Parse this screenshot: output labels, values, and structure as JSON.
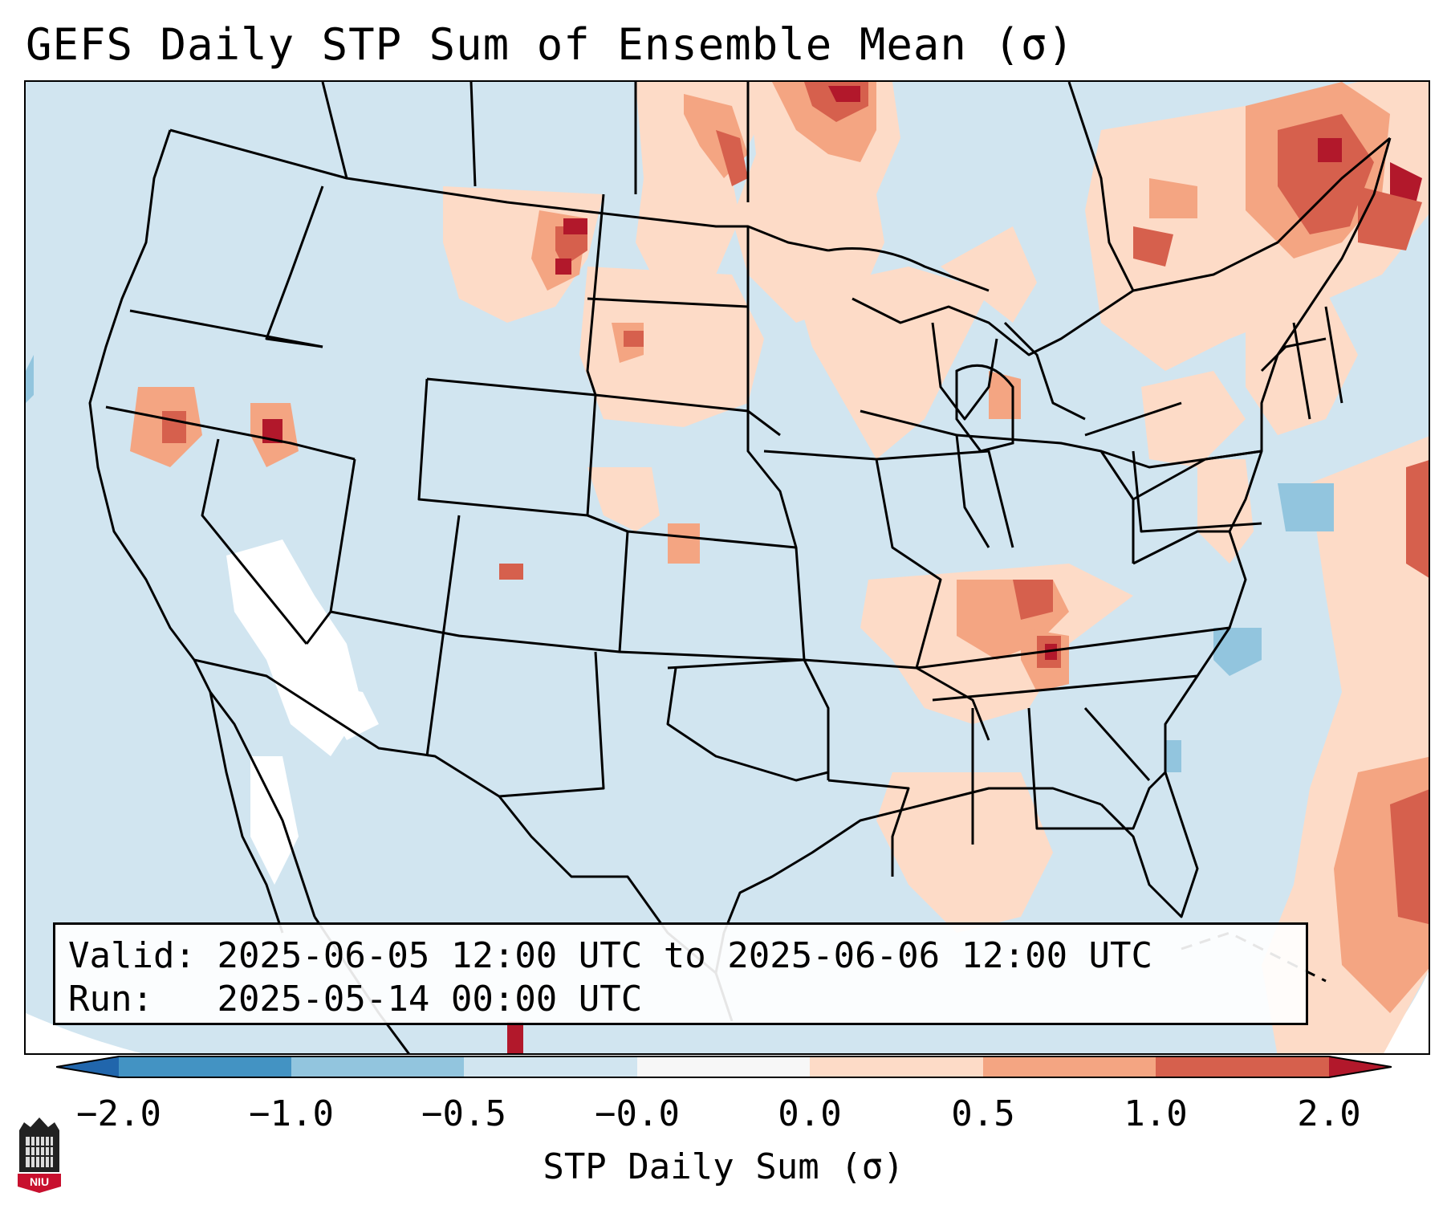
{
  "title": "GEFS Daily STP Sum of Ensemble Mean (σ)",
  "info": {
    "valid_label": "Valid:",
    "valid_value": "2025-06-05 12:00 UTC to 2025-06-06 12:00 UTC",
    "run_label": "Run:",
    "run_value": "2025-05-14 00:00 UTC"
  },
  "colorbar": {
    "label": "STP Daily Sum (σ)",
    "ticks": [
      "−2.0",
      "−1.0",
      "−0.5",
      "−0.0",
      "0.0",
      "0.5",
      "1.0",
      "2.0"
    ],
    "colors": [
      "#2166ac",
      "#4393c3",
      "#92c5de",
      "#d1e5f0",
      "#f7f7f7",
      "#fddbc7",
      "#f4a582",
      "#d6604d",
      "#b2182b"
    ]
  },
  "map": {
    "background_color": "#d1e5f0",
    "anomaly_levels": {
      "light": "#fddbc7",
      "medium": "#f4a582",
      "strong": "#d6604d",
      "extreme": "#b2182b",
      "blue": "#92c5de",
      "white": "#ffffff"
    }
  },
  "logo": {
    "text": "NIU",
    "color": "#c8102e"
  }
}
